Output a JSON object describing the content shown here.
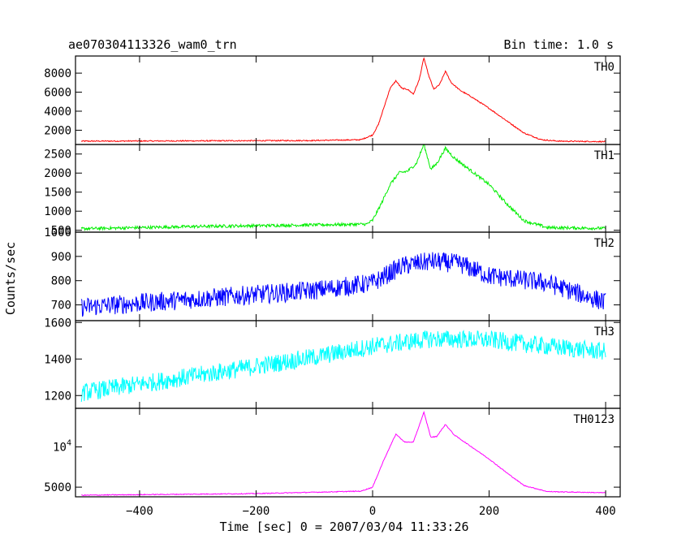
{
  "header": {
    "title": "ae070304113326_wam0_trn",
    "bin_time": "Bin time: 1.0 s"
  },
  "chart_data": {
    "type": "line",
    "xlabel": "Time [sec] 0 = 2007/03/04 11:33:26",
    "ylabel": "Counts/sec",
    "xlim": [
      -510,
      425
    ],
    "x_ticks": [
      -400,
      -200,
      0,
      200,
      400
    ],
    "bin_time_s": 1.0,
    "panels": [
      {
        "name": "TH0",
        "color": "#ff0000",
        "ylim": [
          500,
          9800
        ],
        "y_ticks": [
          {
            "value": 2000,
            "label": "2000"
          },
          {
            "value": 4000,
            "label": "4000"
          },
          {
            "value": 6000,
            "label": "6000"
          },
          {
            "value": 8000,
            "label": "8000"
          }
        ],
        "noise": 60,
        "points": [
          [
            -500,
            850
          ],
          [
            -300,
            880
          ],
          [
            -100,
            920
          ],
          [
            -20,
            1000
          ],
          [
            0,
            1500
          ],
          [
            10,
            2600
          ],
          [
            20,
            4500
          ],
          [
            30,
            6400
          ],
          [
            40,
            7200
          ],
          [
            50,
            6400
          ],
          [
            60,
            6300
          ],
          [
            70,
            5800
          ],
          [
            80,
            7300
          ],
          [
            88,
            9600
          ],
          [
            96,
            7800
          ],
          [
            105,
            6300
          ],
          [
            115,
            6800
          ],
          [
            125,
            8200
          ],
          [
            135,
            7000
          ],
          [
            150,
            6200
          ],
          [
            170,
            5500
          ],
          [
            200,
            4300
          ],
          [
            230,
            3000
          ],
          [
            260,
            1700
          ],
          [
            290,
            1000
          ],
          [
            320,
            850
          ],
          [
            400,
            800
          ]
        ]
      },
      {
        "name": "TH1",
        "color": "#00ee00",
        "ylim": [
          450,
          2750
        ],
        "y_ticks": [
          {
            "value": 500,
            "label": "500"
          },
          {
            "value": 1000,
            "label": "1000"
          },
          {
            "value": 1500,
            "label": "1500"
          },
          {
            "value": 2000,
            "label": "2000"
          },
          {
            "value": 2500,
            "label": "2500"
          }
        ],
        "noise": 40,
        "points": [
          [
            -500,
            540
          ],
          [
            -300,
            600
          ],
          [
            -100,
            640
          ],
          [
            -10,
            660
          ],
          [
            0,
            760
          ],
          [
            15,
            1200
          ],
          [
            30,
            1700
          ],
          [
            45,
            2000
          ],
          [
            60,
            2050
          ],
          [
            75,
            2250
          ],
          [
            88,
            2750
          ],
          [
            100,
            2100
          ],
          [
            110,
            2250
          ],
          [
            125,
            2650
          ],
          [
            140,
            2400
          ],
          [
            170,
            2050
          ],
          [
            200,
            1700
          ],
          [
            230,
            1200
          ],
          [
            260,
            750
          ],
          [
            300,
            570
          ],
          [
            400,
            550
          ]
        ]
      },
      {
        "name": "TH2",
        "color": "#0000ff",
        "ylim": [
          635,
          1000
        ],
        "y_ticks": [
          {
            "value": 700,
            "label": "700"
          },
          {
            "value": 800,
            "label": "800"
          },
          {
            "value": 900,
            "label": "900"
          },
          {
            "value": 1000,
            "label": "1000"
          }
        ],
        "noise": 40,
        "points": [
          [
            -500,
            690
          ],
          [
            -300,
            725
          ],
          [
            -100,
            760
          ],
          [
            0,
            790
          ],
          [
            50,
            860
          ],
          [
            100,
            880
          ],
          [
            150,
            870
          ],
          [
            200,
            820
          ],
          [
            300,
            790
          ],
          [
            400,
            710
          ]
        ]
      },
      {
        "name": "TH3",
        "color": "#00ffff",
        "ylim": [
          1130,
          1610
        ],
        "y_ticks": [
          {
            "value": 1200,
            "label": "1200"
          },
          {
            "value": 1400,
            "label": "1400"
          },
          {
            "value": 1600,
            "label": "1600"
          }
        ],
        "noise": 50,
        "points": [
          [
            -500,
            1215
          ],
          [
            -300,
            1310
          ],
          [
            -100,
            1410
          ],
          [
            0,
            1470
          ],
          [
            100,
            1510
          ],
          [
            200,
            1505
          ],
          [
            300,
            1470
          ],
          [
            400,
            1440
          ]
        ]
      },
      {
        "name": "TH0123",
        "color": "#ff00ff",
        "ylim": [
          3800,
          14800
        ],
        "y_ticks": [
          {
            "value": 5000,
            "label": "5000"
          },
          {
            "value": 10000,
            "label": "10^4"
          }
        ],
        "noise": 50,
        "points": [
          [
            -500,
            4000
          ],
          [
            -200,
            4200
          ],
          [
            -20,
            4500
          ],
          [
            0,
            5000
          ],
          [
            20,
            8500
          ],
          [
            40,
            11600
          ],
          [
            55,
            10600
          ],
          [
            70,
            10600
          ],
          [
            88,
            14300
          ],
          [
            100,
            11200
          ],
          [
            110,
            11300
          ],
          [
            125,
            12800
          ],
          [
            140,
            11500
          ],
          [
            170,
            10000
          ],
          [
            200,
            8500
          ],
          [
            230,
            6800
          ],
          [
            260,
            5200
          ],
          [
            300,
            4450
          ],
          [
            400,
            4300
          ]
        ]
      }
    ]
  }
}
